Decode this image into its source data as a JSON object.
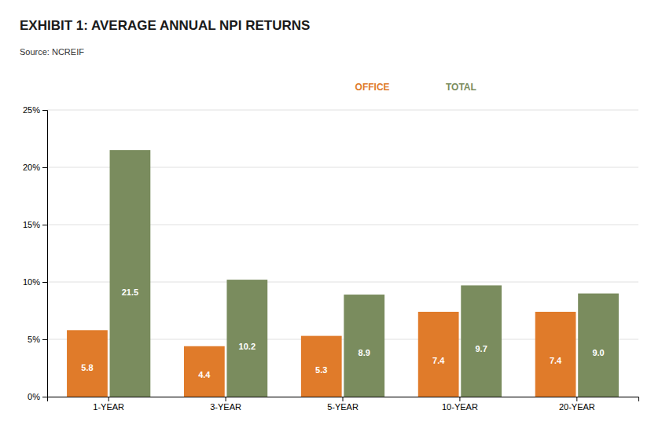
{
  "chart_data": {
    "type": "bar",
    "title": "EXHIBIT 1: AVERAGE ANNUAL NPI RETURNS",
    "subtitle": "Source: NCREIF",
    "categories": [
      "1-YEAR",
      "3-YEAR",
      "5-YEAR",
      "10-YEAR",
      "20-YEAR"
    ],
    "series": [
      {
        "name": "OFFICE",
        "color": "#E07B2A",
        "values": [
          5.8,
          4.4,
          5.3,
          7.4,
          7.4
        ],
        "value_labels": [
          "5.8",
          "4.4",
          "5.3",
          "7.4",
          "7.4"
        ]
      },
      {
        "name": "TOTAL",
        "color": "#7A8C5E",
        "values": [
          21.5,
          10.2,
          8.9,
          9.7,
          9.0
        ],
        "value_labels": [
          "21.5",
          "10.2",
          "8.9",
          "9.7",
          "9.0"
        ]
      }
    ],
    "ylim": [
      0,
      25
    ],
    "yticks": [
      {
        "value": 0,
        "label": "0%"
      },
      {
        "value": 5,
        "label": "5%"
      },
      {
        "value": 10,
        "label": "10%"
      },
      {
        "value": 15,
        "label": "15%"
      },
      {
        "value": 20,
        "label": "20%"
      },
      {
        "value": 25,
        "label": "25%"
      }
    ],
    "grid": true,
    "legend": "top",
    "data_labels": true
  }
}
